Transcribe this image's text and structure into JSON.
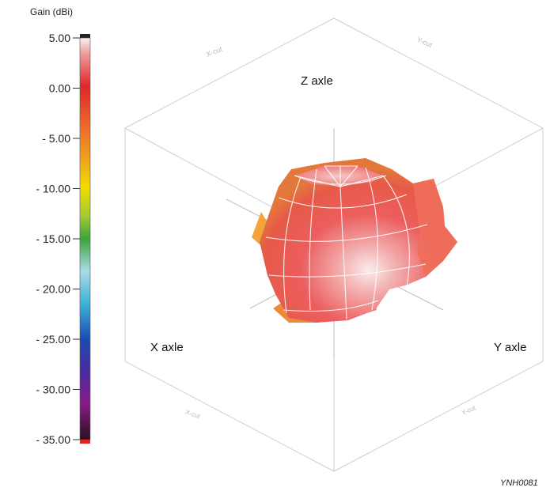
{
  "colorbar": {
    "title": "Gain (dBi)",
    "ticks": [
      "5.00",
      "0.00",
      "- 5.00",
      "- 10.00",
      "- 15.00",
      "- 20.00",
      "- 25.00",
      "- 30.00",
      "- 35.00"
    ],
    "colors": {
      "top": "#222222",
      "white": "#f7f2f2",
      "pink": "#ee9a9a",
      "red": "#e0262b",
      "orange": "#ec6a2a",
      "amber": "#f0a020",
      "yellow": "#f2dc00",
      "green": "#3aa53a",
      "light_cyan": "#a9dbe6",
      "cyan": "#3fb3d8",
      "blue": "#1a4db2",
      "purple": "#4a2aa0",
      "magenta": "#8a1a8a",
      "dark": "#2a1020",
      "bottom_marker": "#e82020"
    }
  },
  "plot": {
    "axis_labels": {
      "z": "Z axle",
      "x": "X axle",
      "y": "Y axle"
    },
    "faint_labels": [
      "X-cut",
      "Y-cut",
      "X-cut",
      "Y-cut"
    ],
    "surface_colors": {
      "highlight": "#fbecec",
      "body": "#ec5e5e",
      "edge": "#e2783a",
      "rim": "#f4a23a"
    }
  },
  "figure_id": "YNH0081"
}
